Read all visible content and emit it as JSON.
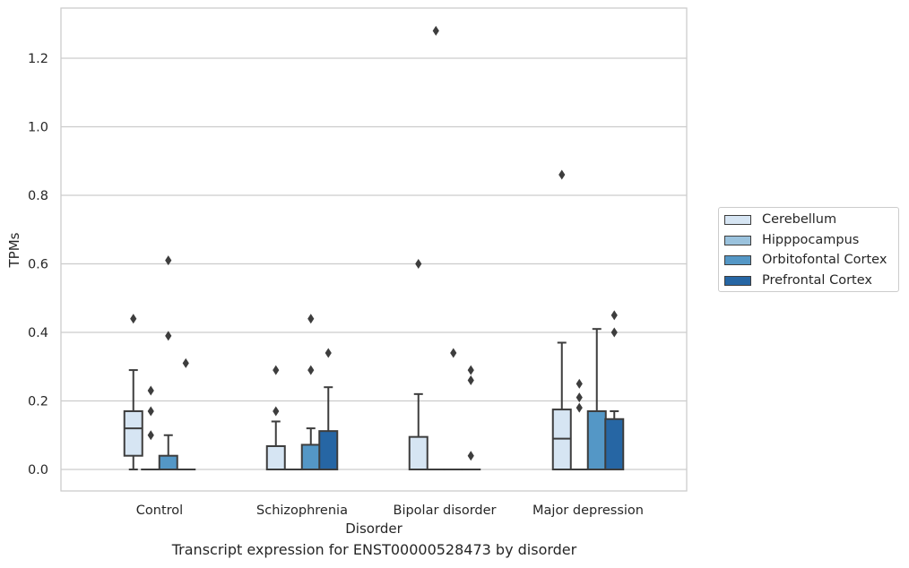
{
  "chart_data": {
    "type": "box",
    "title": "Transcript expression for ENST00000528473 by disorder",
    "xlabel": "Disorder",
    "ylabel": "TPMs",
    "ylim": [
      -0.063,
      1.35
    ],
    "yticks": [
      "0.0",
      "0.2",
      "0.4",
      "0.6",
      "0.8",
      "1.0",
      "1.2"
    ],
    "ytick_values": [
      0.0,
      0.2,
      0.4,
      0.6,
      0.8,
      1.0,
      1.2
    ],
    "categories": [
      "Control",
      "Schizophrenia",
      "Bipolar disorder",
      "Major depression"
    ],
    "grid": "horizontal",
    "legend_position": "right, outside plot",
    "series": [
      {
        "name": "Cerebellum",
        "color": "#d6e5f3",
        "boxes": [
          {
            "min": 0.0,
            "q1": 0.04,
            "median": 0.12,
            "q3": 0.17,
            "max": 0.29,
            "outliers": [
              0.44
            ]
          },
          {
            "min": 0.0,
            "q1": 0.0,
            "median": 0.0,
            "q3": 0.068,
            "max": 0.14,
            "outliers": [
              0.17,
              0.29
            ]
          },
          {
            "min": 0.0,
            "q1": 0.0,
            "median": 0.0,
            "q3": 0.095,
            "max": 0.22,
            "outliers": [
              0.6
            ]
          },
          {
            "min": 0.0,
            "q1": 0.0,
            "median": 0.09,
            "q3": 0.175,
            "max": 0.37,
            "outliers": [
              0.86
            ]
          }
        ]
      },
      {
        "name": "Hipppocampus",
        "color": "#9ac2dd",
        "boxes": [
          {
            "min": 0.0,
            "q1": 0.0,
            "median": 0.0,
            "q3": 0.0,
            "max": 0.0,
            "outliers": [
              0.1,
              0.17,
              0.23
            ]
          },
          {
            "min": 0.0,
            "q1": 0.0,
            "median": 0.0,
            "q3": 0.0,
            "max": 0.0,
            "outliers": []
          },
          {
            "min": 0.0,
            "q1": 0.0,
            "median": 0.0,
            "q3": 0.0,
            "max": 0.0,
            "outliers": [
              1.28
            ]
          },
          {
            "min": 0.0,
            "q1": 0.0,
            "median": 0.0,
            "q3": 0.0,
            "max": 0.0,
            "outliers": [
              0.18,
              0.21,
              0.25
            ]
          }
        ]
      },
      {
        "name": "Orbitofontal Cortex",
        "color": "#5497c6",
        "boxes": [
          {
            "min": 0.0,
            "q1": 0.0,
            "median": 0.0,
            "q3": 0.04,
            "max": 0.1,
            "outliers": [
              0.39,
              0.61
            ]
          },
          {
            "min": 0.0,
            "q1": 0.0,
            "median": 0.0,
            "q3": 0.072,
            "max": 0.12,
            "outliers": [
              0.29,
              0.44
            ]
          },
          {
            "min": 0.0,
            "q1": 0.0,
            "median": 0.0,
            "q3": 0.0,
            "max": 0.0,
            "outliers": [
              0.34
            ]
          },
          {
            "min": 0.0,
            "q1": 0.0,
            "median": 0.0,
            "q3": 0.17,
            "max": 0.41,
            "outliers": []
          }
        ]
      },
      {
        "name": "Prefrontal Cortex",
        "color": "#2666a4",
        "boxes": [
          {
            "min": 0.0,
            "q1": 0.0,
            "median": 0.0,
            "q3": 0.0,
            "max": 0.0,
            "outliers": [
              0.31
            ]
          },
          {
            "min": 0.0,
            "q1": 0.0,
            "median": 0.0,
            "q3": 0.112,
            "max": 0.24,
            "outliers": [
              0.34
            ]
          },
          {
            "min": 0.0,
            "q1": 0.0,
            "median": 0.0,
            "q3": 0.0,
            "max": 0.0,
            "outliers": [
              0.04,
              0.26,
              0.29
            ]
          },
          {
            "min": 0.0,
            "q1": 0.0,
            "median": 0.0,
            "q3": 0.147,
            "max": 0.17,
            "outliers": [
              0.4,
              0.45
            ]
          }
        ]
      }
    ]
  }
}
